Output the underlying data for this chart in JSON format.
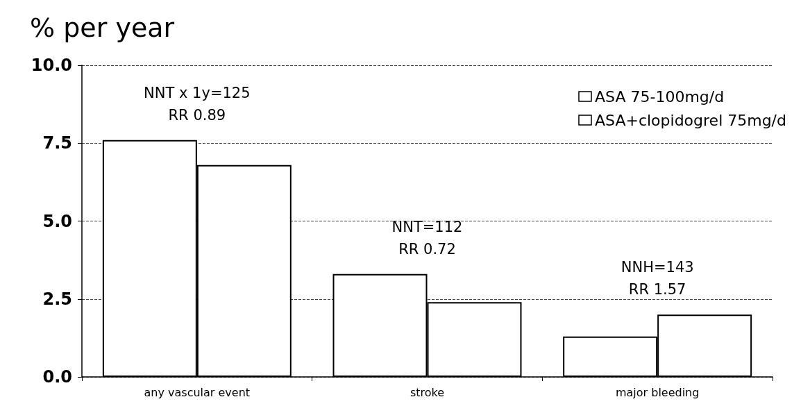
{
  "chart_data": {
    "type": "bar",
    "ylabel": "% per year",
    "categories": [
      "any vascular event",
      "stroke",
      "major bleeding"
    ],
    "series": [
      {
        "name": "ASA 75-100mg/d",
        "color": "#ffffff",
        "values": [
          7.6,
          3.3,
          1.3
        ]
      },
      {
        "name": "ASA+clopidogrel 75mg/d",
        "color": "#ffffff",
        "values": [
          6.8,
          2.4,
          2.0
        ]
      }
    ],
    "ylim": [
      0,
      10
    ],
    "yticks": [
      {
        "value": 0,
        "label": "0.0"
      },
      {
        "value": 2.5,
        "label": "2.5"
      },
      {
        "value": 5,
        "label": "5.0"
      },
      {
        "value": 7.5,
        "label": "7.5"
      },
      {
        "value": 10,
        "label": "10.0"
      }
    ],
    "grid": "y",
    "legend": "top right",
    "annotations": [
      "NNT x 1y=125\nRR 0.89",
      "NNT=112\nRR 0.72",
      "NNH=143\nRR 1.57"
    ]
  }
}
